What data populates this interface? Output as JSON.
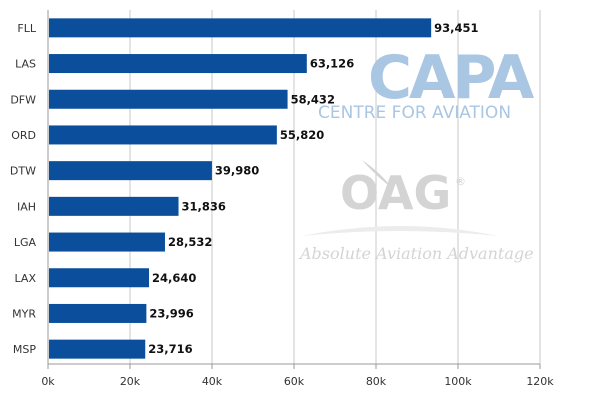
{
  "colors": {
    "bar": "#0b4f9c",
    "grid": "#c8c8c8",
    "axis": "#9a9a9a",
    "watermark_blue": "#a9c6e3",
    "watermark_grey": "#d4d4d4"
  },
  "watermarks": {
    "capa_logo": "CAPA",
    "capa_tagline": "CENTRE FOR AVIATION",
    "oag_logo": "OAG",
    "oag_registered": "®",
    "oag_tagline": "Absolute Aviation Advantage"
  },
  "chart_data": {
    "type": "bar",
    "orientation": "horizontal",
    "categories": [
      "FLL",
      "LAS",
      "DFW",
      "ORD",
      "DTW",
      "IAH",
      "LGA",
      "LAX",
      "MYR",
      "MSP"
    ],
    "values": [
      93451,
      63126,
      58432,
      55820,
      39980,
      31836,
      28532,
      24640,
      23996,
      23716
    ],
    "value_labels": [
      "93,451",
      "63,126",
      "58,432",
      "55,820",
      "39,980",
      "31,836",
      "28,532",
      "24,640",
      "23,996",
      "23,716"
    ],
    "xlim": [
      0,
      120000
    ],
    "x_ticks": [
      0,
      20000,
      40000,
      60000,
      80000,
      100000,
      120000
    ],
    "x_tick_labels": [
      "0k",
      "20k",
      "40k",
      "60k",
      "80k",
      "100k",
      "120k"
    ],
    "grid": true,
    "legend": false
  }
}
